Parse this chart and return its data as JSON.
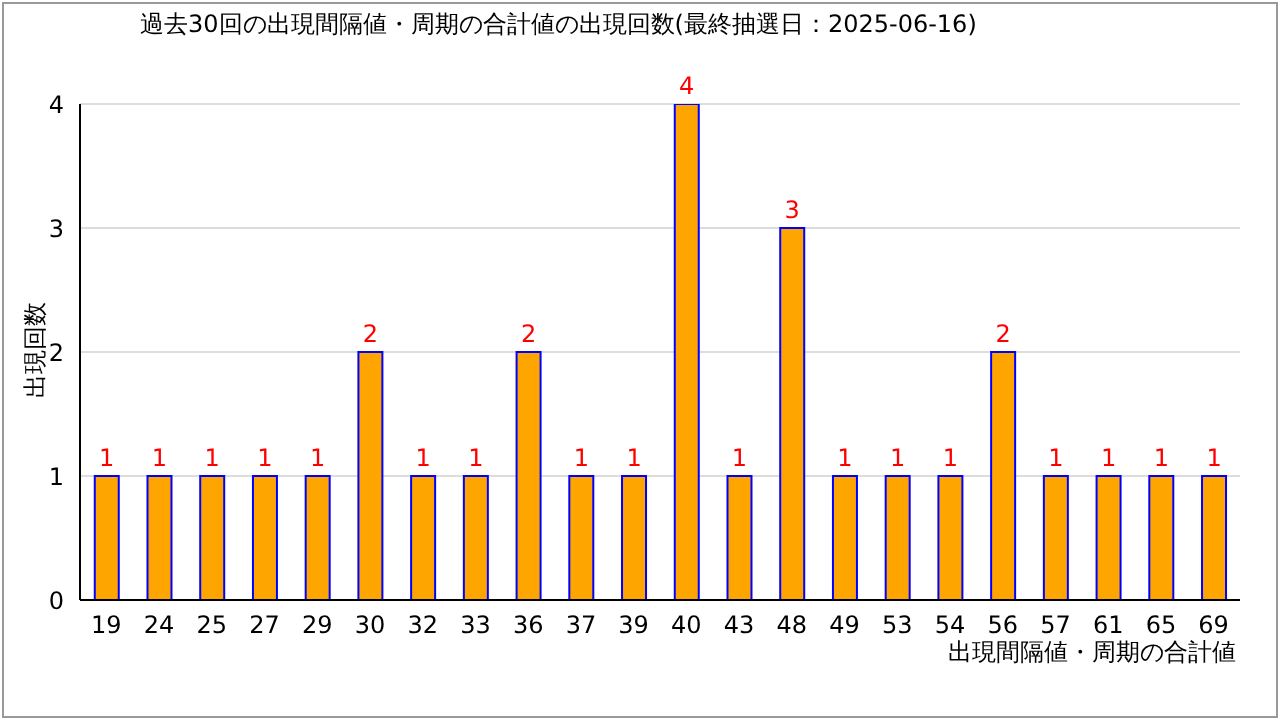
{
  "chart_data": {
    "type": "bar",
    "title": "過去30回の出現間隔値・周期の合計値の出現回数(最終抽選日：2025-06-16)",
    "xlabel": "出現間隔値・周期の合計値",
    "ylabel": "出現回数",
    "categories": [
      "19",
      "24",
      "25",
      "27",
      "29",
      "30",
      "32",
      "33",
      "36",
      "37",
      "39",
      "40",
      "43",
      "48",
      "49",
      "53",
      "54",
      "56",
      "57",
      "61",
      "65",
      "69"
    ],
    "values": [
      1,
      1,
      1,
      1,
      1,
      2,
      1,
      1,
      2,
      1,
      1,
      4,
      1,
      3,
      1,
      1,
      1,
      2,
      1,
      1,
      1,
      1
    ],
    "color": "#ffa500",
    "ylim": [
      0,
      4
    ],
    "yticks": [
      0,
      1,
      2,
      3,
      4
    ],
    "grid": "y",
    "data_labels": true
  }
}
